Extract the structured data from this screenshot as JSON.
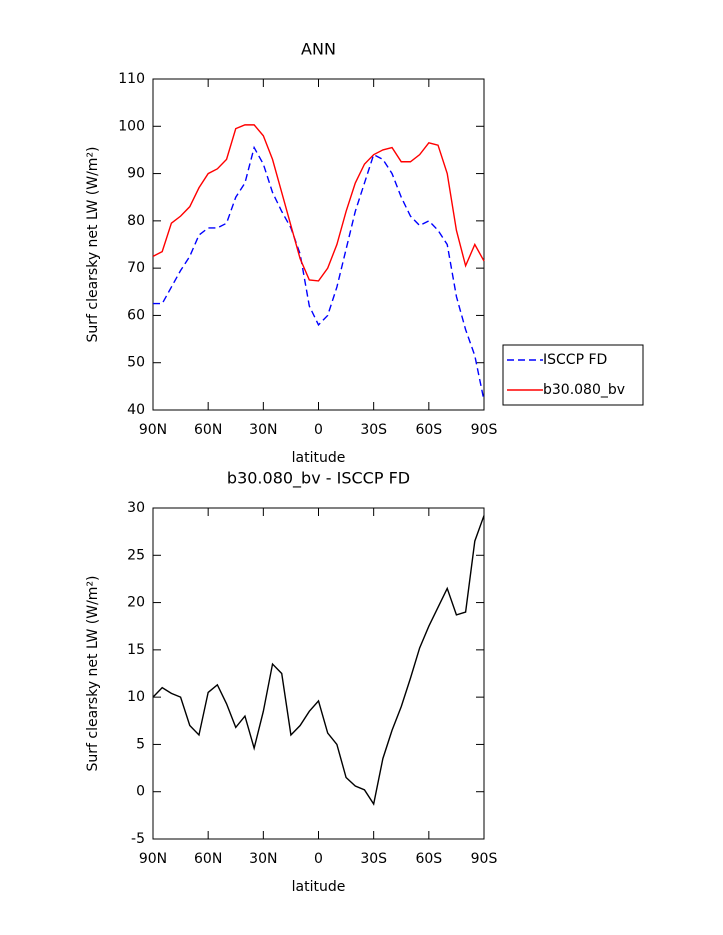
{
  "chart_data": [
    {
      "type": "line",
      "title": "ANN",
      "xlabel": "latitude",
      "ylabel": "Surf clearsky net LW (W/m²)",
      "x": [
        90,
        85,
        80,
        75,
        70,
        65,
        60,
        55,
        50,
        45,
        40,
        35,
        30,
        25,
        20,
        15,
        10,
        5,
        0,
        -5,
        -10,
        -15,
        -20,
        -25,
        -30,
        -35,
        -40,
        -45,
        -50,
        -55,
        -60,
        -65,
        -70,
        -75,
        -80,
        -85,
        -90
      ],
      "series": [
        {
          "name": "ISCCP FD",
          "color": "#0000ff",
          "dashed": true,
          "values": [
            62.5,
            62.5,
            66,
            69.5,
            72.5,
            77,
            78.5,
            78.5,
            79.5,
            85,
            88,
            95.5,
            92,
            86,
            82,
            78.5,
            73,
            62,
            58,
            60,
            66,
            74,
            82,
            88,
            94,
            93,
            90,
            85,
            81,
            79,
            80,
            78,
            75,
            64,
            57,
            51.5,
            42
          ]
        },
        {
          "name": "b30.080_bv",
          "color": "#ff0000",
          "dashed": false,
          "values": [
            72.5,
            73.5,
            79.5,
            81,
            83,
            87,
            90,
            91,
            93,
            99.5,
            100.3,
            100.3,
            98,
            93,
            86,
            79,
            72,
            67.5,
            67.3,
            70,
            75,
            82,
            88,
            92,
            94,
            95,
            95.5,
            92.5,
            92.5,
            94,
            96.5,
            96,
            90,
            78,
            70.5,
            75,
            71.5
          ]
        }
      ],
      "xlim": [
        90,
        -90
      ],
      "xticks": [
        {
          "value": 90,
          "label": "90N"
        },
        {
          "value": 60,
          "label": "60N"
        },
        {
          "value": 30,
          "label": "30N"
        },
        0,
        {
          "value": -30,
          "label": "30S"
        },
        {
          "value": -60,
          "label": "60S"
        },
        {
          "value": -90,
          "label": "90S"
        }
      ],
      "ylim": [
        40,
        110
      ],
      "yticks": [
        40,
        50,
        60,
        70,
        80,
        90,
        100,
        110
      ],
      "legend": "right"
    },
    {
      "type": "line",
      "title": "b30.080_bv - ISCCP FD",
      "xlabel": "latitude",
      "ylabel": "Surf clearsky net LW (W/m²)",
      "x": [
        90,
        85,
        80,
        75,
        70,
        65,
        60,
        55,
        50,
        45,
        40,
        35,
        30,
        25,
        20,
        15,
        10,
        5,
        0,
        -5,
        -10,
        -15,
        -20,
        -25,
        -30,
        -35,
        -40,
        -45,
        -50,
        -55,
        -60,
        -65,
        -70,
        -75,
        -80,
        -85,
        -90
      ],
      "series": [
        {
          "color": "#000000",
          "dashed": false,
          "values": [
            10,
            11,
            10.4,
            10,
            7,
            6,
            10.5,
            11.3,
            9.3,
            6.8,
            8,
            4.6,
            8.5,
            13.5,
            12.5,
            6,
            7,
            8.5,
            9.6,
            6.2,
            5,
            1.5,
            0.6,
            0.2,
            -1.3,
            3.5,
            6.5,
            9,
            12,
            15.2,
            17.5,
            19.5,
            21.5,
            18.7,
            19,
            26.5,
            29.2
          ]
        }
      ],
      "xlim": [
        90,
        -90
      ],
      "xticks": [
        {
          "value": 90,
          "label": "90N"
        },
        {
          "value": 60,
          "label": "60N"
        },
        {
          "value": 30,
          "label": "30N"
        },
        0,
        {
          "value": -30,
          "label": "30S"
        },
        {
          "value": -60,
          "label": "60S"
        },
        {
          "value": -90,
          "label": "90S"
        }
      ],
      "ylim": [
        -5,
        30
      ],
      "yticks": [
        -5,
        0,
        5,
        10,
        15,
        20,
        25,
        30
      ]
    }
  ]
}
